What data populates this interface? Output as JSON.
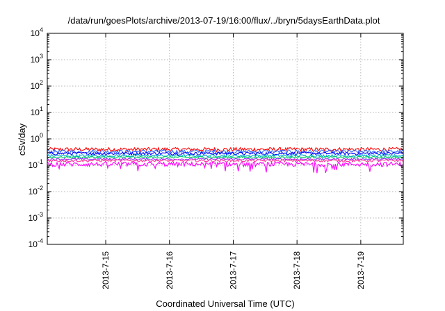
{
  "chart_data": {
    "type": "line",
    "title": "/data/run/goesPlots/archive/2013-07-19/16:00/flux/../bryn/5daysEarthData.plot",
    "xlabel": "Coordinated Universal Time (UTC)",
    "ylabel": "cSv/day",
    "yscale": "log",
    "ylim": [
      0.0001,
      10000
    ],
    "y_ticks": [
      {
        "value": 0.0001,
        "base": "10",
        "exp": "-4"
      },
      {
        "value": 0.001,
        "base": "10",
        "exp": "-3"
      },
      {
        "value": 0.01,
        "base": "10",
        "exp": "-2"
      },
      {
        "value": 0.1,
        "base": "10",
        "exp": "-1"
      },
      {
        "value": 1,
        "base": "10",
        "exp": "0"
      },
      {
        "value": 10,
        "base": "10",
        "exp": "1"
      },
      {
        "value": 100,
        "base": "10",
        "exp": "2"
      },
      {
        "value": 1000,
        "base": "10",
        "exp": "3"
      },
      {
        "value": 10000,
        "base": "10",
        "exp": "4"
      }
    ],
    "xlim": [
      "2013-07-14T02:00",
      "2013-07-19T16:00"
    ],
    "x_ticks": [
      {
        "date": "2013-07-15",
        "label": "2013-7-15"
      },
      {
        "date": "2013-07-16",
        "label": "2013-7-16"
      },
      {
        "date": "2013-07-17",
        "label": "2013-7-17"
      },
      {
        "date": "2013-07-18",
        "label": "2013-7-18"
      },
      {
        "date": "2013-07-19",
        "label": "2013-7-19"
      }
    ],
    "grid": true,
    "series": [
      {
        "color": "#ff0000",
        "level": 0.4,
        "noise": 0.08
      },
      {
        "color": "#3366ff",
        "level": 0.33,
        "noise": 0.07
      },
      {
        "color": "#0000ff",
        "level": 0.28,
        "noise": 0.06
      },
      {
        "color": "#00aacc",
        "level": 0.23,
        "noise": 0.05
      },
      {
        "color": "#00cc66",
        "level": 0.2,
        "noise": 0.04
      },
      {
        "color": "#9933ff",
        "level": 0.17,
        "noise": 0.04
      },
      {
        "color": "#ff3399",
        "level": 0.15,
        "noise": 0.05
      },
      {
        "color": "#ff00ff",
        "level": 0.11,
        "noise": 0.09
      }
    ]
  }
}
